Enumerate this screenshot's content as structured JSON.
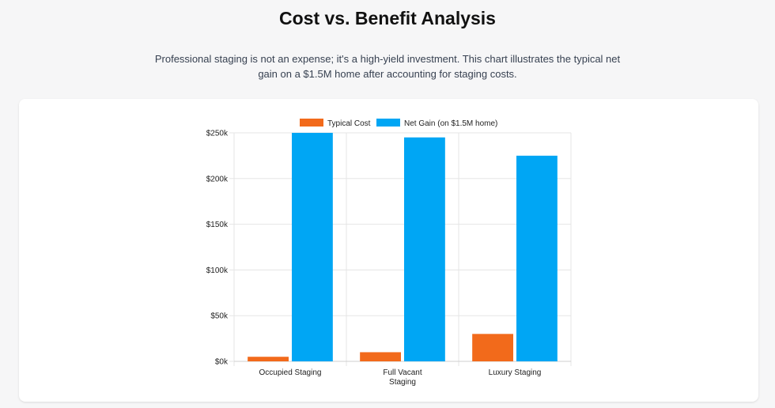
{
  "header": {
    "title": "Cost vs. Benefit Analysis",
    "description": "Professional staging is not an expense; it's a high-yield investment. This chart illustrates the typical net gain on a $1.5M home after accounting for staging costs."
  },
  "colors": {
    "cost": "#f26a1b",
    "gain": "#00a6f4",
    "grid": "#e5e5e5"
  },
  "chart_data": {
    "type": "bar",
    "title": "",
    "xlabel": "",
    "ylabel": "",
    "legend_position": "top-center",
    "grid": true,
    "categories": [
      [
        "Occupied Staging"
      ],
      [
        "Full Vacant",
        "Staging"
      ],
      [
        "Luxury Staging"
      ]
    ],
    "series": [
      {
        "name": "Typical Cost",
        "values": [
          5000,
          10000,
          30000
        ]
      },
      {
        "name": "Net Gain (on $1.5M home)",
        "values": [
          250000,
          245000,
          225000
        ]
      }
    ],
    "ylim": [
      0,
      250000
    ],
    "yticks": [
      {
        "value": 0,
        "label": "$0k"
      },
      {
        "value": 50000,
        "label": "$50k"
      },
      {
        "value": 100000,
        "label": "$100k"
      },
      {
        "value": 150000,
        "label": "$150k"
      },
      {
        "value": 200000,
        "label": "$200k"
      },
      {
        "value": 250000,
        "label": "$250k"
      }
    ]
  }
}
